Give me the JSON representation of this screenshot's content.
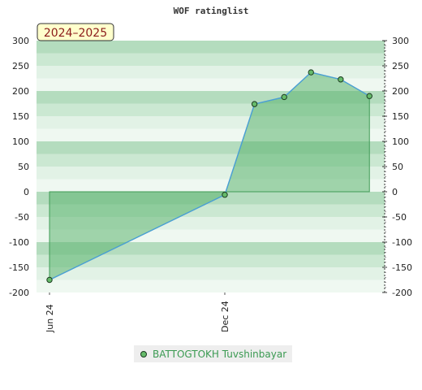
{
  "chart_data": {
    "type": "area",
    "title": "WOF ratinglist",
    "period_badge": "2024–2025",
    "x_labels": [
      "Jun 24",
      "Dec 24"
    ],
    "y_ticks": [
      300,
      250,
      200,
      150,
      100,
      50,
      0,
      -50,
      -100,
      -150,
      -200
    ],
    "ylim": [
      -200,
      300
    ],
    "grid": false,
    "series": [
      {
        "name": "BATTOGTOKH Tuvshinbayar",
        "points": [
          {
            "date": "2024-06-01",
            "y": -175
          },
          {
            "date": "2024-12-01",
            "y": -6
          },
          {
            "date": "2025-01-01",
            "y": 174
          },
          {
            "date": "2025-02-01",
            "y": 188
          },
          {
            "date": "2025-03-01",
            "y": 237
          },
          {
            "date": "2025-04-01",
            "y": 223
          },
          {
            "date": "2025-05-01",
            "y": 190
          }
        ]
      }
    ],
    "legend": "bottom",
    "colors": {
      "line": "#4a9fd6",
      "fill": "#5cb56f",
      "marker": "#66bb6a",
      "band_dark": "#b4dcbe",
      "band_mid": "#cbe8d2",
      "band_light": "#e2f2e6",
      "band_faint": "#eff8f1"
    }
  }
}
